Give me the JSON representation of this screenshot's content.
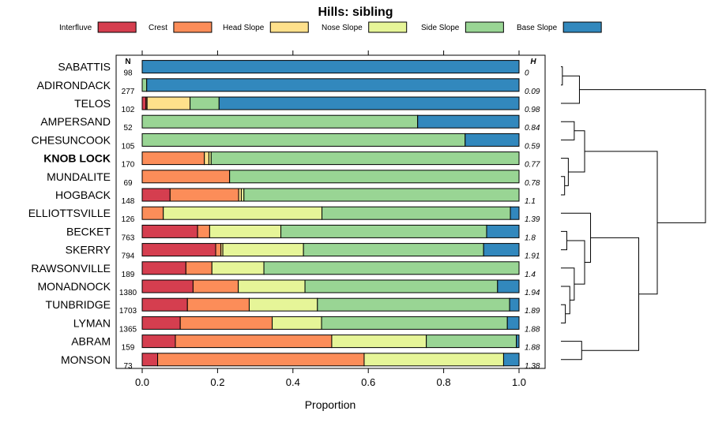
{
  "chart_data": {
    "type": "bar",
    "subtype": "stacked-horizontal-proportion",
    "title": "Hills: sibling",
    "xlabel": "Proportion",
    "xlim": [
      0,
      1
    ],
    "xticks": [
      "0.0",
      "0.2",
      "0.4",
      "0.6",
      "0.8",
      "1.0"
    ],
    "n_header": "N",
    "h_header": "H",
    "series": [
      {
        "name": "Interfluve",
        "color": "#d53e4f"
      },
      {
        "name": "Crest",
        "color": "#fc8d59"
      },
      {
        "name": "Head Slope",
        "color": "#fee08b"
      },
      {
        "name": "Nose Slope",
        "color": "#e6f598"
      },
      {
        "name": "Side Slope",
        "color": "#99d594"
      },
      {
        "name": "Base Slope",
        "color": "#3288bd"
      }
    ],
    "categories": [
      {
        "name": "SABATTIS",
        "n": "98",
        "h": "0",
        "bold": false,
        "values": [
          0,
          0,
          0,
          0,
          0,
          1.0
        ]
      },
      {
        "name": "ADIRONDACK",
        "n": "277",
        "h": "0.09",
        "bold": false,
        "values": [
          0,
          0,
          0,
          0,
          0.012,
          0.988
        ]
      },
      {
        "name": "TELOS",
        "n": "102",
        "h": "0.98",
        "bold": false,
        "values": [
          0.01,
          0.003,
          0.114,
          0,
          0.077,
          0.796
        ]
      },
      {
        "name": "AMPERSAND",
        "n": "52",
        "h": "0.84",
        "bold": false,
        "values": [
          0,
          0,
          0,
          0,
          0.731,
          0.269
        ]
      },
      {
        "name": "CHESUNCOOK",
        "n": "105",
        "h": "0.59",
        "bold": false,
        "values": [
          0,
          0,
          0,
          0,
          0.857,
          0.143
        ]
      },
      {
        "name": "KNOB LOCK",
        "n": "170",
        "h": "0.77",
        "bold": true,
        "values": [
          0,
          0.165,
          0.012,
          0.006,
          0.817,
          0
        ]
      },
      {
        "name": "MUNDALITE",
        "n": "69",
        "h": "0.78",
        "bold": false,
        "values": [
          0,
          0.232,
          0,
          0,
          0.768,
          0
        ]
      },
      {
        "name": "HOGBACK",
        "n": "148",
        "h": "1.1",
        "bold": false,
        "values": [
          0.074,
          0.182,
          0.007,
          0.007,
          0.73,
          0
        ]
      },
      {
        "name": "ELLIOTTSVILLE",
        "n": "126",
        "h": "1.39",
        "bold": false,
        "values": [
          0,
          0.056,
          0,
          0.421,
          0.5,
          0.023
        ]
      },
      {
        "name": "BECKET",
        "n": "763",
        "h": "1.8",
        "bold": false,
        "values": [
          0.147,
          0.032,
          0,
          0.189,
          0.546,
          0.086
        ]
      },
      {
        "name": "SKERRY",
        "n": "794",
        "h": "1.91",
        "bold": false,
        "values": [
          0.195,
          0.014,
          0.005,
          0.214,
          0.478,
          0.094
        ]
      },
      {
        "name": "RAWSONVILLE",
        "n": "189",
        "h": "1.4",
        "bold": false,
        "values": [
          0.116,
          0.069,
          0,
          0.138,
          0.677,
          0
        ]
      },
      {
        "name": "MONADNOCK",
        "n": "1380",
        "h": "1.94",
        "bold": false,
        "values": [
          0.135,
          0.12,
          0,
          0.177,
          0.511,
          0.057
        ]
      },
      {
        "name": "TUNBRIDGE",
        "n": "1703",
        "h": "1.89",
        "bold": false,
        "values": [
          0.12,
          0.164,
          0,
          0.181,
          0.51,
          0.025
        ]
      },
      {
        "name": "LYMAN",
        "n": "1365",
        "h": "1.88",
        "bold": false,
        "values": [
          0.101,
          0.244,
          0,
          0.131,
          0.493,
          0.031
        ]
      },
      {
        "name": "ABRAM",
        "n": "159",
        "h": "1.88",
        "bold": false,
        "values": [
          0.088,
          0.415,
          0,
          0.251,
          0.239,
          0.007
        ]
      },
      {
        "name": "MONSON",
        "n": "73",
        "h": "1.38",
        "bold": false,
        "values": [
          0.041,
          0.548,
          0,
          0.37,
          0,
          0.041
        ]
      }
    ],
    "dendrogram": {
      "merges": [
        [
          -1,
          -2
        ],
        [
          -3,
          1
        ],
        [
          -4,
          -5
        ],
        [
          -7,
          -8
        ],
        [
          -6,
          4
        ],
        [
          3,
          5
        ],
        [
          -10,
          -11
        ],
        [
          -14,
          -15
        ],
        [
          -13,
          8
        ],
        [
          -12,
          9
        ],
        [
          7,
          10
        ],
        [
          -9,
          11
        ],
        [
          -16,
          -17
        ],
        [
          12,
          13
        ],
        [
          6,
          14
        ],
        [
          2,
          15
        ]
      ],
      "heights": [
        0.02,
        0.25,
        0.18,
        0.05,
        0.1,
        0.32,
        0.08,
        0.06,
        0.12,
        0.18,
        0.32,
        0.4,
        0.28,
        1.05,
        1.3,
        1.95
      ]
    }
  }
}
